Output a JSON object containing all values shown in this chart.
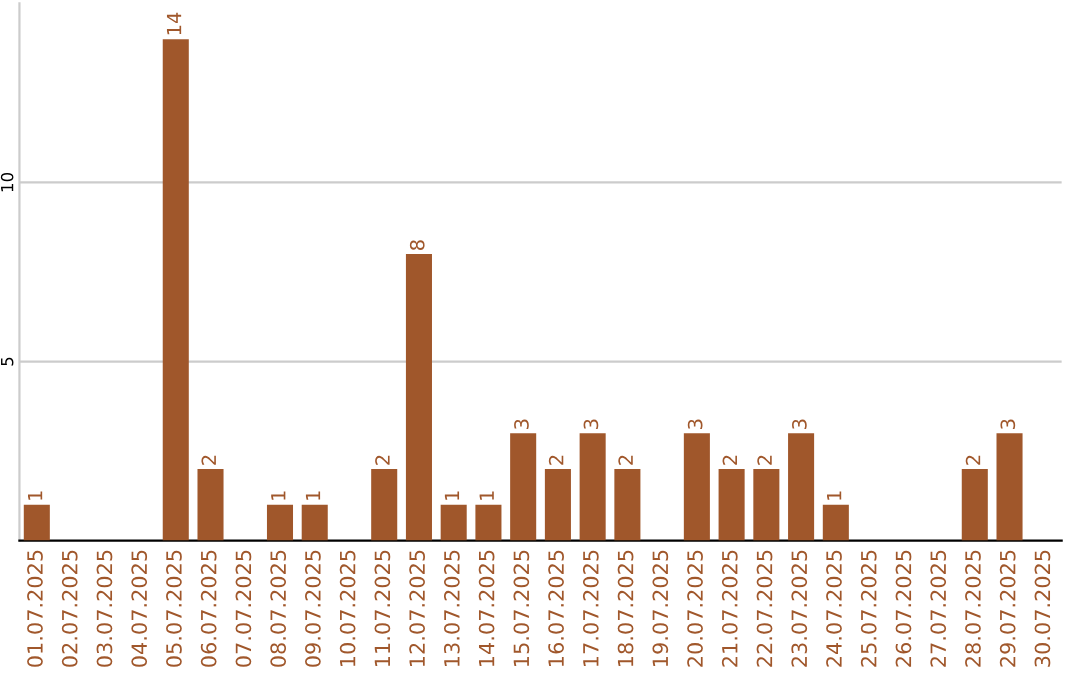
{
  "chart_data": {
    "type": "bar",
    "categories": [
      "01.07.2025",
      "02.07.2025",
      "03.07.2025",
      "04.07.2025",
      "05.07.2025",
      "06.07.2025",
      "07.07.2025",
      "08.07.2025",
      "09.07.2025",
      "10.07.2025",
      "11.07.2025",
      "12.07.2025",
      "13.07.2025",
      "14.07.2025",
      "15.07.2025",
      "16.07.2025",
      "17.07.2025",
      "18.07.2025",
      "19.07.2025",
      "20.07.2025",
      "21.07.2025",
      "22.07.2025",
      "23.07.2025",
      "24.07.2025",
      "25.07.2025",
      "26.07.2025",
      "27.07.2025",
      "28.07.2025",
      "29.07.2025",
      "30.07.2025"
    ],
    "values": [
      1,
      0,
      0,
      0,
      14,
      2,
      0,
      1,
      1,
      0,
      2,
      8,
      1,
      1,
      3,
      2,
      3,
      2,
      0,
      3,
      2,
      2,
      3,
      1,
      0,
      0,
      0,
      2,
      3,
      0
    ],
    "value_labels": [
      "1",
      null,
      null,
      null,
      "14",
      "2",
      null,
      "1",
      "1",
      null,
      "2",
      "8",
      "1",
      "1",
      "3",
      "2",
      "3",
      "2",
      null,
      "3",
      "2",
      "2",
      "3",
      "1",
      null,
      null,
      null,
      "2",
      "3",
      null
    ],
    "color": "#a0572b",
    "ylim": [
      0,
      15
    ],
    "yticks": [
      5,
      10
    ],
    "grid": "y"
  }
}
